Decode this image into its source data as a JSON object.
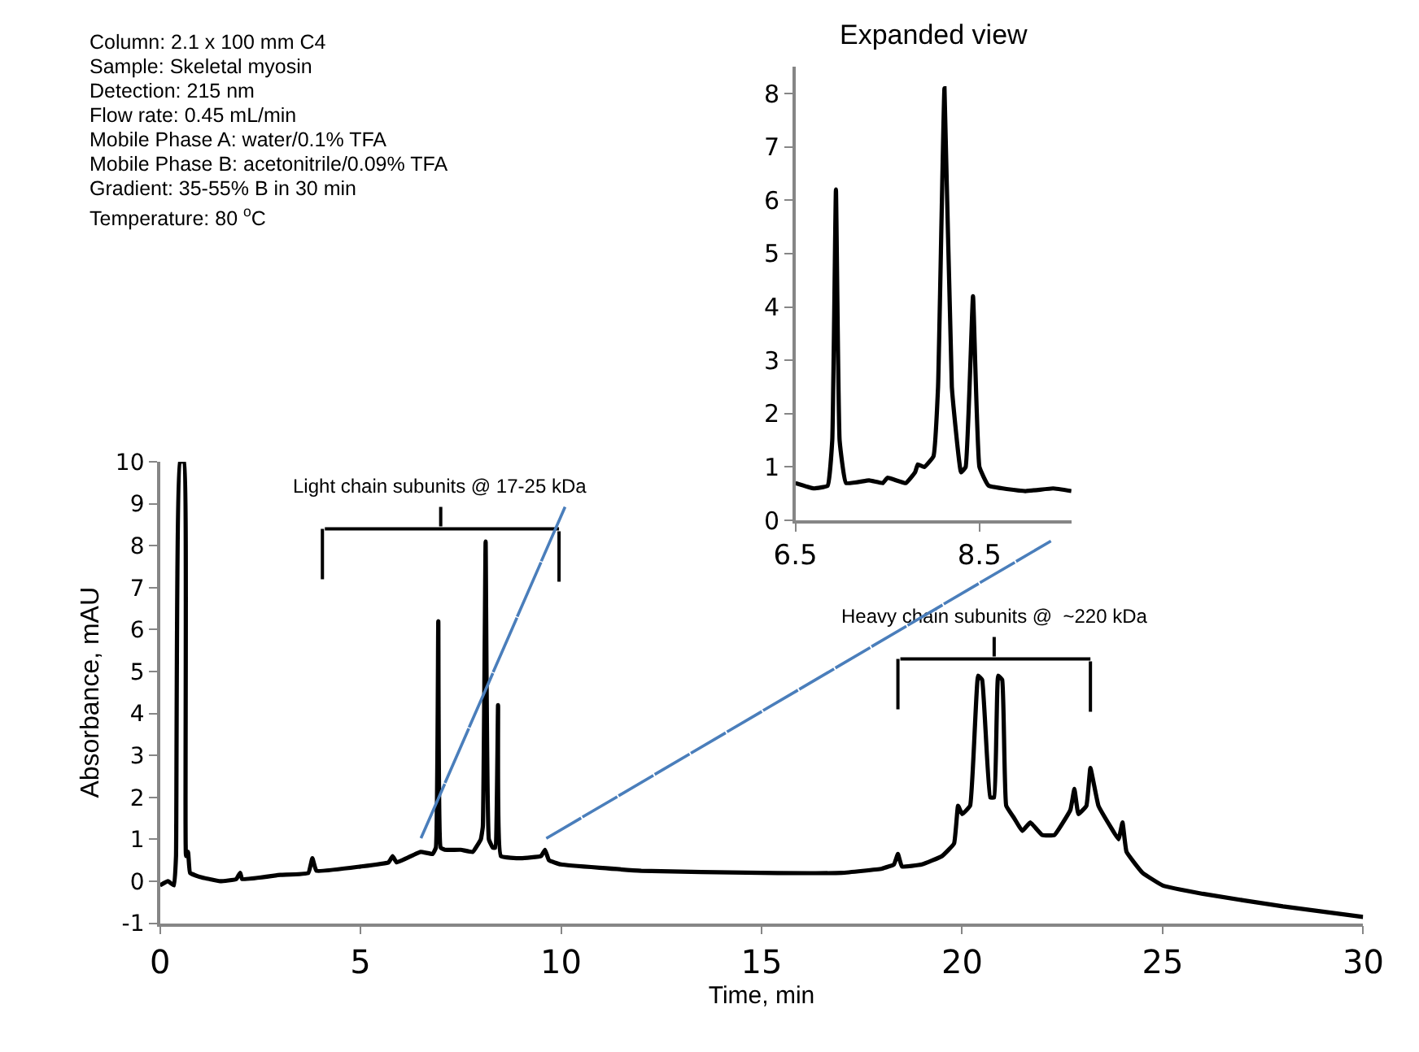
{
  "chart_data": [
    {
      "type": "line",
      "xlabel": "Time, min",
      "ylabel": "Absorbance, mAU",
      "xlim": [
        0,
        30
      ],
      "xticks": [
        0,
        5,
        10,
        15,
        20,
        25,
        30
      ],
      "ylim": [
        -1,
        10
      ],
      "yticks": [
        -1,
        0,
        1,
        2,
        3,
        4,
        5,
        6,
        7,
        8,
        9,
        10
      ],
      "marker": "none",
      "line_style": "solid",
      "series": [
        {
          "color": "#000000",
          "x": [
            0,
            0.2,
            0.35,
            0.4,
            0.5,
            0.6,
            0.65,
            0.7,
            0.75,
            1.0,
            1.5,
            1.9,
            2.0,
            2.05,
            3,
            3.7,
            3.8,
            3.9,
            5,
            5.7,
            5.8,
            5.9,
            6.5,
            6.8,
            6.88,
            6.94,
            7.0,
            7.1,
            7.5,
            7.8,
            8.0,
            8.05,
            8.12,
            8.2,
            8.3,
            8.36,
            8.43,
            8.5,
            9,
            9.5,
            9.6,
            9.7,
            10,
            12,
            15,
            17,
            18,
            18.3,
            18.4,
            18.5,
            19,
            19.5,
            19.8,
            19.9,
            20.0,
            20.2,
            20.4,
            20.5,
            20.7,
            20.8,
            20.9,
            21.0,
            21.1,
            21.3,
            21.5,
            21.7,
            22.0,
            22.3,
            22.7,
            22.8,
            22.9,
            23.1,
            23.2,
            23.4,
            23.7,
            23.9,
            24.0,
            24.1,
            24.5,
            25,
            26,
            28,
            30
          ],
          "values": [
            -0.1,
            0,
            -0.1,
            0.6,
            10,
            10,
            0.6,
            0.7,
            0.2,
            0.1,
            0,
            0.05,
            0.2,
            0.05,
            0.15,
            0.2,
            0.55,
            0.25,
            0.35,
            0.45,
            0.6,
            0.45,
            0.7,
            0.65,
            0.8,
            6.2,
            0.8,
            0.75,
            0.75,
            0.7,
            1.0,
            1.3,
            8.1,
            1.0,
            0.8,
            0.8,
            4.2,
            0.6,
            0.55,
            0.6,
            0.75,
            0.5,
            0.4,
            0.25,
            0.2,
            0.2,
            0.3,
            0.4,
            0.65,
            0.35,
            0.4,
            0.6,
            0.9,
            1.8,
            1.6,
            1.8,
            4.9,
            4.8,
            2.0,
            2.0,
            4.9,
            4.8,
            1.8,
            1.5,
            1.2,
            1.4,
            1.1,
            1.1,
            1.7,
            2.2,
            1.6,
            1.8,
            2.7,
            1.8,
            1.3,
            1.0,
            1.4,
            0.7,
            0.2,
            -0.1,
            -0.3,
            -0.6,
            -0.85
          ]
        }
      ],
      "annotations": [
        "Light chain subunits @ 17-25 kDa",
        "Heavy chain subunits @  ~220 kDa",
        "Column: 2.1 x 100 mm C4",
        "Sample: Skeletal myosin",
        "Detection: 215 nm",
        "Flow rate: 0.45 mL/min",
        "Mobile Phase A: water/0.1% TFA",
        "Mobile Phase B: acetonitrile/0.09% TFA",
        "Gradient: 35-55% B in 30 min",
        "Temperature: 80 $^{o}$C"
      ]
    },
    {
      "type": "line",
      "title": "Expanded view",
      "xlim": [
        6.5,
        9.5
      ],
      "xticks": [
        6.5,
        8.5
      ],
      "ylim": [
        0,
        8.5
      ],
      "yticks": [
        0,
        1,
        2,
        3,
        4,
        5,
        6,
        7,
        8
      ],
      "marker": "none",
      "line_style": "solid",
      "series": [
        {
          "color": "#000000",
          "x": [
            6.5,
            6.7,
            6.85,
            6.9,
            6.94,
            6.98,
            7.05,
            7.3,
            7.45,
            7.5,
            7.7,
            7.8,
            7.83,
            7.9,
            8.0,
            8.05,
            8.12,
            8.2,
            8.3,
            8.35,
            8.43,
            8.5,
            8.6,
            9.0,
            9.3,
            9.5
          ],
          "values": [
            0.7,
            0.6,
            0.65,
            1.5,
            6.2,
            1.5,
            0.7,
            0.75,
            0.7,
            0.8,
            0.7,
            0.9,
            1.05,
            1.0,
            1.2,
            2.5,
            8.1,
            2.5,
            0.9,
            1.0,
            4.2,
            1.0,
            0.65,
            0.55,
            0.6,
            0.55
          ]
        }
      ]
    }
  ]
}
